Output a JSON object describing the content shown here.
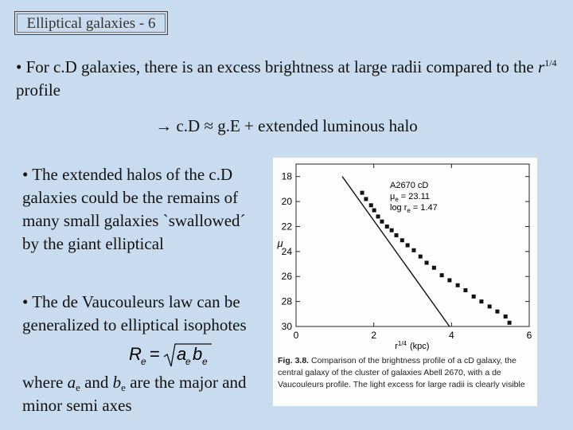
{
  "title": "Elliptical galaxies - 6",
  "bullet1": {
    "text": "• For c.D galaxies, there is an excess brightness at large radii compared to the",
    "var": "r",
    "sup": "1/4",
    "tail": "profile"
  },
  "arrow_line": "→ c.D ≈ g.E + extended luminous halo",
  "bullet2": "• The extended halos of the c.D galaxies could be the remains of many small galaxies `swallowed´ by the giant elliptical",
  "bullet3": "• The de Vaucouleurs law can be generalized to elliptical isophotes",
  "formula": {
    "lhs": "R",
    "lhs_sub": "e",
    "eq": "=",
    "a": "a",
    "a_sub": "e",
    "b": "b",
    "b_sub": "e"
  },
  "where": {
    "t1": "where",
    "a": "a",
    "a_sub": "e",
    "t2": "and",
    "b": "b",
    "b_sub": "e",
    "t3": "are the major and minor semi axes"
  },
  "chart_data": {
    "type": "scatter",
    "x_label": {
      "var": "r",
      "sup": "1/4",
      "unit": "(kpc)"
    },
    "y_label": "μ",
    "xlim": [
      0,
      6
    ],
    "xticks": [
      0,
      2,
      4,
      6
    ],
    "ylim": [
      17,
      30
    ],
    "yticks": [
      18,
      20,
      22,
      24,
      26,
      28,
      30
    ],
    "y_inverted": true,
    "series": [
      {
        "type": "scatter",
        "color": "#111111",
        "x": [
          1.7,
          1.8,
          1.93,
          2.01,
          2.11,
          2.21,
          2.34,
          2.46,
          2.58,
          2.73,
          2.87,
          3.03,
          3.2,
          3.36,
          3.55,
          3.75,
          3.95,
          4.16,
          4.36,
          4.57,
          4.77,
          4.98,
          5.18,
          5.39,
          5.49
        ],
        "values": [
          19.3,
          19.8,
          20.3,
          20.7,
          21.2,
          21.6,
          22.0,
          22.3,
          22.7,
          23.1,
          23.5,
          23.9,
          24.4,
          24.9,
          25.3,
          25.9,
          26.3,
          26.7,
          27.1,
          27.6,
          28.0,
          28.4,
          28.8,
          29.2,
          29.7
        ]
      },
      {
        "type": "line",
        "color": "#111111",
        "x": [
          1.19,
          3.95
        ],
        "values": [
          18,
          30
        ]
      }
    ],
    "annotations": [
      {
        "text": "A2670 cD"
      },
      {
        "text": "μ",
        "sub": "e",
        "rest": "= 23.11"
      },
      {
        "text": "log r",
        "sub": "e",
        "rest": "= 1.47"
      }
    ],
    "caption": {
      "label": "Fig. 3.8.",
      "text": "Comparison of the brightness profile of a cD galaxy, the central galaxy of the cluster of galaxies Abell 2670, with a de Vaucouleurs profile. The light excess for large radii is clearly visible"
    }
  }
}
